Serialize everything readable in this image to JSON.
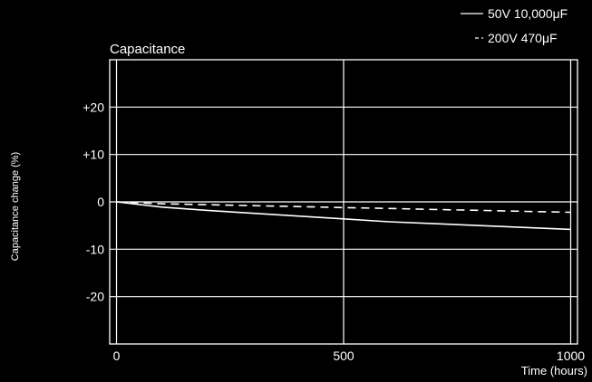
{
  "chart_data": {
    "type": "line",
    "title": "Capacitance",
    "xlabel": "Time (hours)",
    "ylabel": "Capacitance change (%)",
    "xlim": [
      -15,
      1015
    ],
    "ylim": [
      -30,
      30
    ],
    "grid": true,
    "legend_position": "top-right",
    "x_ticks": [
      {
        "value": 0,
        "label": "0"
      },
      {
        "value": 500,
        "label": "500"
      },
      {
        "value": 1000,
        "label": "1000"
      }
    ],
    "y_ticks": [
      {
        "value": 20,
        "label": "+20"
      },
      {
        "value": 10,
        "label": "+10"
      },
      {
        "value": 0,
        "label": "0"
      },
      {
        "value": -10,
        "label": "-10"
      },
      {
        "value": -20,
        "label": "-20"
      }
    ],
    "series": [
      {
        "name": "50V 10,000μF",
        "style": "solid",
        "x": [
          0,
          100,
          200,
          300,
          400,
          500,
          600,
          700,
          800,
          900,
          1000
        ],
        "y": [
          0,
          -1.1,
          -1.8,
          -2.4,
          -3.0,
          -3.6,
          -4.2,
          -4.6,
          -5.0,
          -5.4,
          -5.8
        ]
      },
      {
        "name": "200V 470μF",
        "style": "dashed",
        "x": [
          0,
          100,
          200,
          300,
          400,
          500,
          600,
          700,
          800,
          900,
          1000
        ],
        "y": [
          0,
          -0.4,
          -0.6,
          -0.8,
          -1.0,
          -1.2,
          -1.4,
          -1.6,
          -1.8,
          -2.0,
          -2.2
        ]
      }
    ],
    "colors": {
      "background": "#000000",
      "foreground": "#ffffff"
    }
  }
}
